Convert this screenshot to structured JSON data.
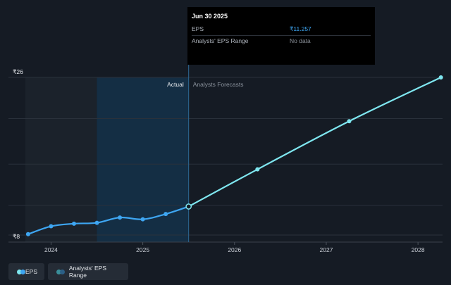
{
  "chart_data": {
    "type": "line",
    "ylabels": {
      "top": "₹26",
      "bottom": "₹8"
    },
    "ylim": [
      8,
      26
    ],
    "xlim": [
      2023.72,
      2028.26
    ],
    "x_ticks": [
      {
        "label": "2024",
        "value": 2024.0
      },
      {
        "label": "2025",
        "value": 2025.0
      },
      {
        "label": "2026",
        "value": 2026.0
      },
      {
        "label": "2027",
        "value": 2027.0
      },
      {
        "label": "2028",
        "value": 2028.0
      }
    ],
    "grid_values": [
      8,
      11.4,
      16.1,
      21.3,
      26
    ],
    "grid": true,
    "region_labels": {
      "actual": "Actual",
      "forecast": "Analysts Forecasts"
    },
    "past_start": 2023.72,
    "highlight_start": 2024.5,
    "split_x": 2025.5,
    "series": [
      {
        "name": "EPS",
        "color": "#3ea6f2",
        "points": [
          {
            "x": 2023.75,
            "y": 8.1
          },
          {
            "x": 2024.0,
            "y": 9.0
          },
          {
            "x": 2024.25,
            "y": 9.3
          },
          {
            "x": 2024.5,
            "y": 9.4
          },
          {
            "x": 2024.75,
            "y": 10.0
          },
          {
            "x": 2025.0,
            "y": 9.8
          },
          {
            "x": 2025.25,
            "y": 10.4
          },
          {
            "x": 2025.5,
            "y": 11.257
          }
        ]
      },
      {
        "name": "EPS",
        "color": "#7fe7f0",
        "points": [
          {
            "x": 2025.5,
            "y": 11.257
          },
          {
            "x": 2026.25,
            "y": 15.5
          },
          {
            "x": 2027.25,
            "y": 21.0
          },
          {
            "x": 2028.25,
            "y": 26.0
          }
        ]
      }
    ]
  },
  "tooltip": {
    "date": "Jun 30 2025",
    "eps_label": "EPS",
    "eps_value": "₹11.257",
    "range_label": "Analysts' EPS Range",
    "range_value": "No data"
  },
  "legend": {
    "eps_label": "EPS",
    "range_label": "Analysts' EPS Range",
    "eps_colors": [
      "#7fe7f0",
      "#3ea6f2"
    ],
    "range_colors": [
      "#3a8f9a",
      "#2b5f86"
    ]
  },
  "colors": {
    "background": "#151b24",
    "past_shade": "#1b222b",
    "highlight": "#14314a",
    "grid": "#2a313b",
    "split_line": "#2f6b99"
  }
}
